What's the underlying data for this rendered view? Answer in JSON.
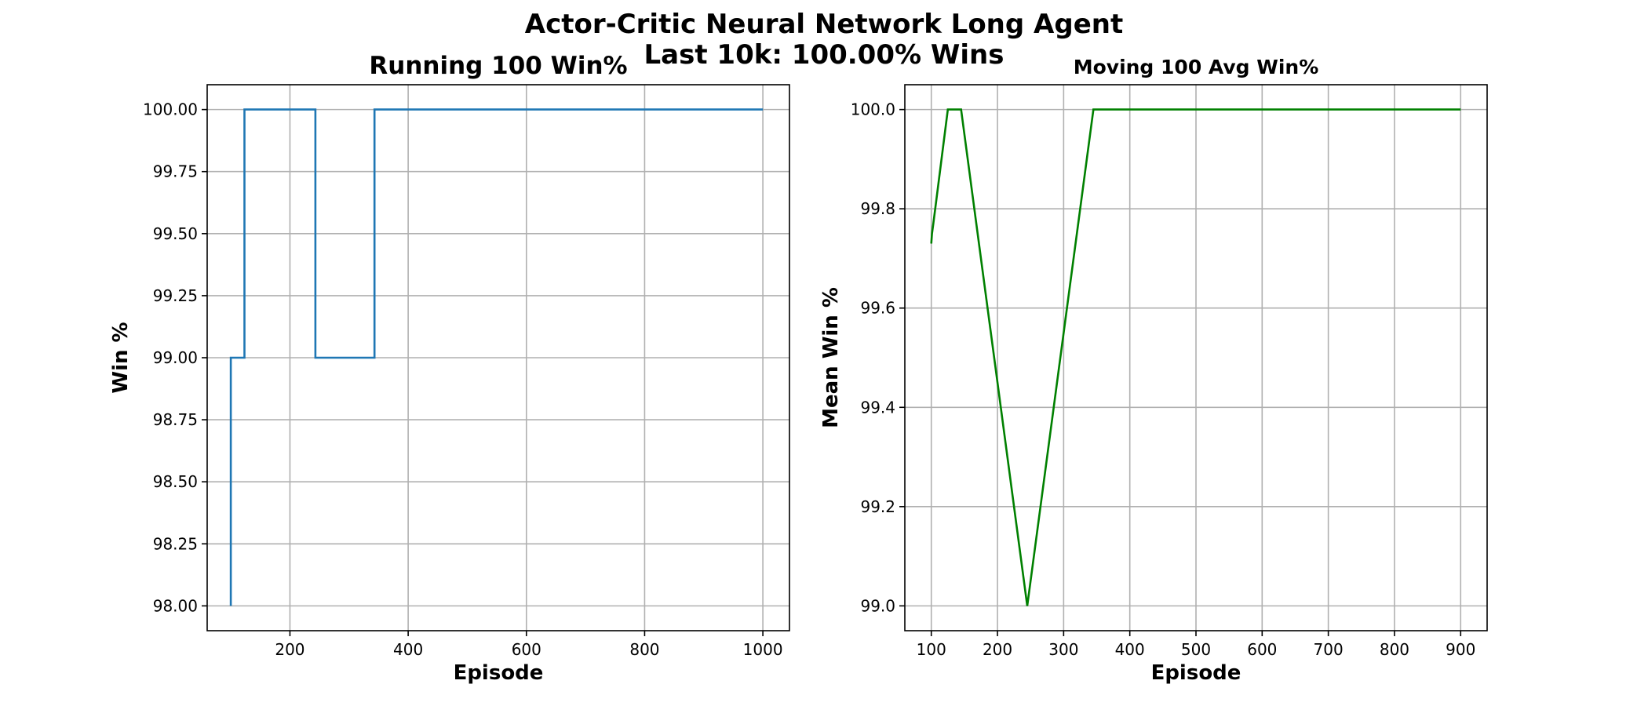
{
  "figure": {
    "suptitle_line1": "Actor-Critic Neural Network Long Agent",
    "suptitle_line2": "Last 10k: 100.00% Wins"
  },
  "colors": {
    "left_series": "#1f77b4",
    "right_series": "#008000",
    "grid": "#b0b0b0",
    "background": "#ffffff"
  },
  "chart_data": [
    {
      "type": "line",
      "title": "Running 100 Win%",
      "xlabel": "Episode",
      "ylabel": "Win %",
      "grid": true,
      "step": true,
      "xlim": [
        60,
        1045
      ],
      "ylim": [
        97.9,
        100.1
      ],
      "xticks": [
        200,
        400,
        600,
        800,
        1000
      ],
      "yticks": [
        "98.00",
        "98.25",
        "98.50",
        "98.75",
        "99.00",
        "99.25",
        "99.50",
        "99.75",
        "100.00"
      ],
      "x": [
        100,
        100,
        123,
        123,
        243,
        243,
        343,
        343,
        1000
      ],
      "y": [
        98,
        99,
        99,
        100,
        100,
        99,
        99,
        100,
        100
      ]
    },
    {
      "type": "line",
      "title": "Moving 100 Avg Win%",
      "xlabel": "Episode",
      "ylabel": "Mean Win %",
      "grid": true,
      "xlim": [
        60,
        940
      ],
      "ylim": [
        98.95,
        100.05
      ],
      "xticks": [
        "100",
        "200",
        "300",
        "400",
        "500",
        "600",
        "700",
        "800",
        "900"
      ],
      "yticks": [
        "99.0",
        "99.2",
        "99.4",
        "99.6",
        "99.8",
        "100.0"
      ],
      "x": [
        100,
        101,
        103,
        125,
        145,
        245,
        345,
        900
      ],
      "y": [
        99.73,
        99.75,
        99.77,
        100.0,
        100.0,
        99.0,
        100.0,
        100.0
      ]
    }
  ]
}
